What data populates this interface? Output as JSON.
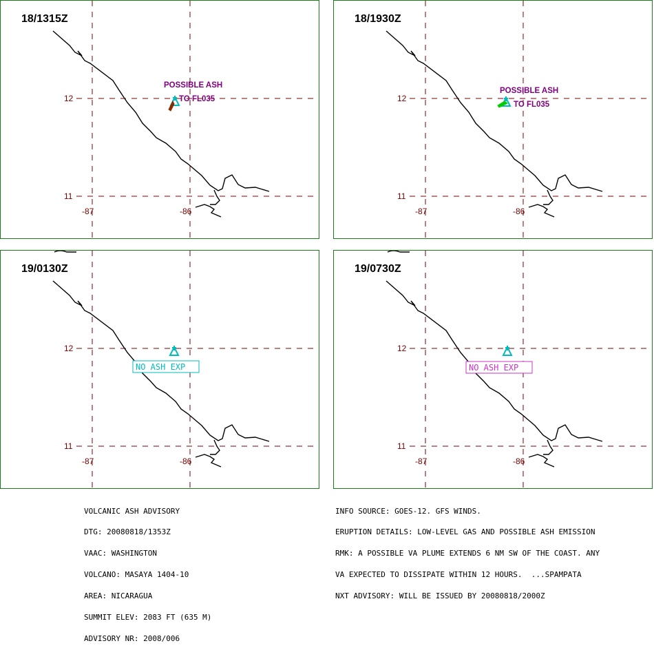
{
  "panels": [
    {
      "time": "18/1315Z",
      "ash_label_1": "POSSIBLE ASH",
      "ash_label_2": "TO FL035",
      "box_label": "",
      "lat_labels": [
        "12",
        "11"
      ],
      "lon_labels": [
        "-87",
        "-86"
      ]
    },
    {
      "time": "18/1930Z",
      "ash_label_1": "POSSIBLE ASH",
      "ash_label_2": "TO FL035",
      "box_label": "",
      "lat_labels": [
        "12",
        "11"
      ],
      "lon_labels": [
        "-87",
        "-86"
      ]
    },
    {
      "time": "19/0130Z",
      "ash_label_1": "",
      "ash_label_2": "",
      "box_label": "NO ASH EXP",
      "box_color": "#00bcbc",
      "lat_labels": [
        "12",
        "11"
      ],
      "lon_labels": [
        "-87",
        "-86"
      ]
    },
    {
      "time": "19/0730Z",
      "ash_label_1": "",
      "ash_label_2": "",
      "box_label": "NO ASH EXP",
      "box_color": "#cc33cc",
      "lat_labels": [
        "12",
        "11"
      ],
      "lon_labels": [
        "-87",
        "-86"
      ]
    }
  ],
  "advisory_left": [
    "VOLCANIC ASH ADVISORY",
    "DTG: 20080818/1353Z",
    "VAAC: WASHINGTON",
    "VOLCANO: MASAYA 1404-10",
    "AREA: NICARAGUA",
    "SUMMIT ELEV: 2083 FT (635 M)",
    "ADVISORY NR: 2008/006"
  ],
  "advisory_right": [
    "INFO SOURCE: GOES-12. GFS WINDS.",
    "ERUPTION DETAILS: LOW-LEVEL GAS AND POSSIBLE ASH EMISSION",
    "RMK: A POSSIBLE VA PLUME EXTENDS 6 NM SW OF THE COAST. ANY",
    "VA EXPECTED TO DISSIPATE WITHIN 12 HOURS.  ...SPAMPATA",
    "NXT ADVISORY: WILL BE ISSUED BY 20080818/2000Z"
  ],
  "colors": {
    "panel_border": "#1a7a1a",
    "grid": "#7a0000",
    "coast": "#000000",
    "volcano_marker": "#00bcbc",
    "ash_text": "#800080",
    "ash_plume_1": "#8b2d00",
    "ash_plume_2": "#00cc00"
  },
  "icons": {
    "volcano": "volcano-triangle-icon"
  }
}
